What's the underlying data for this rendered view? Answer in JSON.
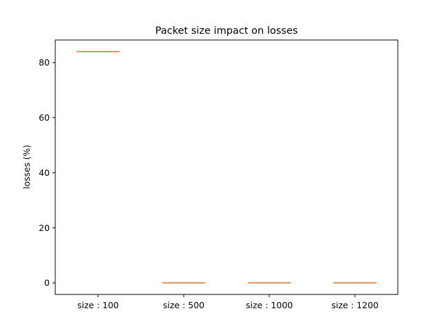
{
  "chart_data": {
    "type": "box",
    "title": "Packet size impact on losses",
    "xlabel": "",
    "ylabel": "losses (%)",
    "ylim": [
      -4.2,
      88.2
    ],
    "yticks": [
      0,
      20,
      40,
      60,
      80
    ],
    "grid": false,
    "categories": [
      "size : 100",
      "size : 500",
      "size : 1000",
      "size : 1200"
    ],
    "values": [
      84.0,
      0.0,
      0.0,
      0.0
    ],
    "colors": {
      "box": "#000000",
      "median": "#e07b39",
      "axis": "#000000"
    }
  }
}
